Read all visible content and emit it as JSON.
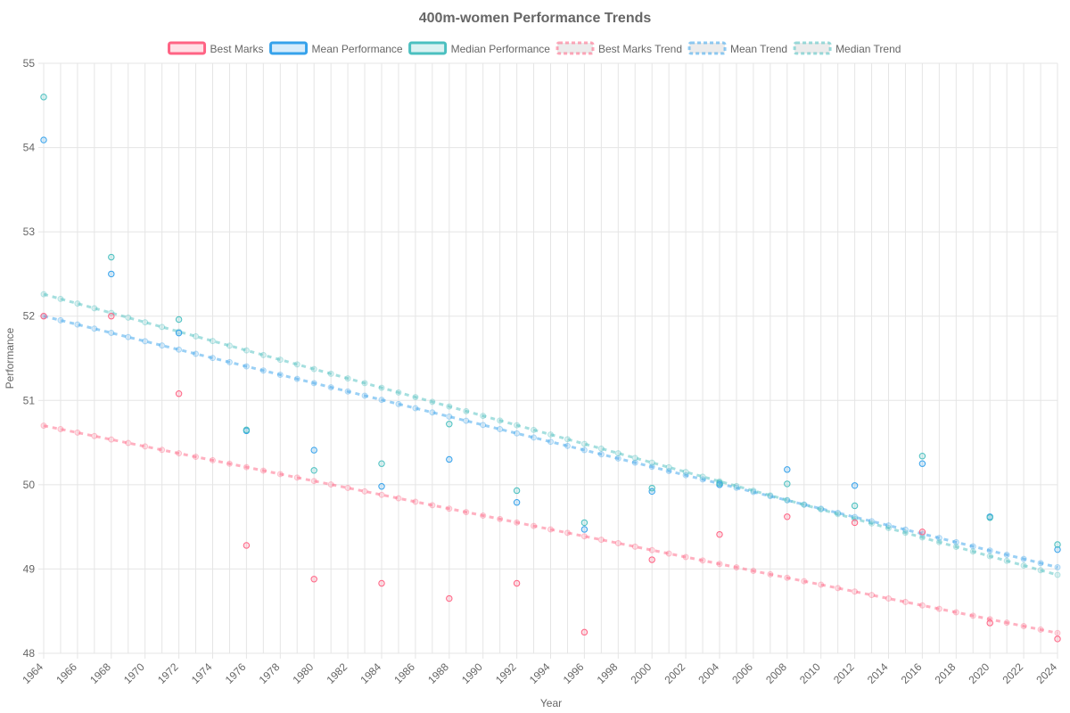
{
  "chart_data": {
    "type": "scatter",
    "title": "400m-women Performance Trends",
    "xlabel": "Year",
    "ylabel": "Performance",
    "xlim": [
      1964,
      2024
    ],
    "ylim": [
      48,
      55
    ],
    "x_ticks": [
      "1964",
      "1966",
      "1968",
      "1970",
      "1972",
      "1974",
      "1976",
      "1978",
      "1980",
      "1982",
      "1984",
      "1986",
      "1988",
      "1990",
      "1992",
      "1994",
      "1996",
      "1998",
      "2000",
      "2002",
      "2004",
      "2006",
      "2008",
      "2010",
      "2012",
      "2014",
      "2016",
      "2018",
      "2020",
      "2022",
      "2024"
    ],
    "y_ticks": [
      "48",
      "49",
      "50",
      "51",
      "52",
      "53",
      "54",
      "55"
    ],
    "grid": true,
    "legend_position": "top",
    "series": [
      {
        "name": "Best Marks",
        "kind": "points",
        "color": "#ff6384",
        "points": [
          [
            1964,
            52.0
          ],
          [
            1968,
            52.0
          ],
          [
            1972,
            51.08
          ],
          [
            1976,
            49.28
          ],
          [
            1980,
            48.88
          ],
          [
            1984,
            48.83
          ],
          [
            1988,
            48.65
          ],
          [
            1992,
            48.83
          ],
          [
            1996,
            48.25
          ],
          [
            2000,
            49.11
          ],
          [
            2004,
            49.41
          ],
          [
            2008,
            49.62
          ],
          [
            2012,
            49.55
          ],
          [
            2016,
            49.44
          ],
          [
            2020,
            48.36
          ],
          [
            2024,
            48.17
          ]
        ]
      },
      {
        "name": "Mean Performance",
        "kind": "points",
        "color": "#36a2eb",
        "points": [
          [
            1964,
            54.09
          ],
          [
            1968,
            52.5
          ],
          [
            1972,
            51.8
          ],
          [
            1976,
            50.64
          ],
          [
            1980,
            50.41
          ],
          [
            1984,
            49.98
          ],
          [
            1988,
            50.3
          ],
          [
            1992,
            49.79
          ],
          [
            1996,
            49.47
          ],
          [
            2000,
            49.92
          ],
          [
            2004,
            50.0
          ],
          [
            2008,
            50.18
          ],
          [
            2012,
            49.99
          ],
          [
            2016,
            50.25
          ],
          [
            2020,
            49.62
          ],
          [
            2024,
            49.23
          ]
        ]
      },
      {
        "name": "Median Performance",
        "kind": "points",
        "color": "#4bc0c0",
        "points": [
          [
            1964,
            54.6
          ],
          [
            1968,
            52.7
          ],
          [
            1972,
            51.96
          ],
          [
            1976,
            50.65
          ],
          [
            1980,
            50.17
          ],
          [
            1984,
            50.25
          ],
          [
            1988,
            50.72
          ],
          [
            1992,
            49.93
          ],
          [
            1996,
            49.55
          ],
          [
            2000,
            49.96
          ],
          [
            2004,
            50.02
          ],
          [
            2008,
            50.01
          ],
          [
            2012,
            49.75
          ],
          [
            2016,
            50.34
          ],
          [
            2020,
            49.61
          ],
          [
            2024,
            49.29
          ]
        ]
      },
      {
        "name": "Best Marks Trend",
        "kind": "trend",
        "color": "#ff6384",
        "start": [
          1964,
          50.7
        ],
        "end": [
          2024,
          48.24
        ]
      },
      {
        "name": "Mean Trend",
        "kind": "trend",
        "color": "#36a2eb",
        "start": [
          1964,
          52.0
        ],
        "end": [
          2024,
          49.02
        ]
      },
      {
        "name": "Median Trend",
        "kind": "trend",
        "color": "#4bc0c0",
        "start": [
          1964,
          52.26
        ],
        "end": [
          2024,
          48.93
        ]
      }
    ]
  }
}
